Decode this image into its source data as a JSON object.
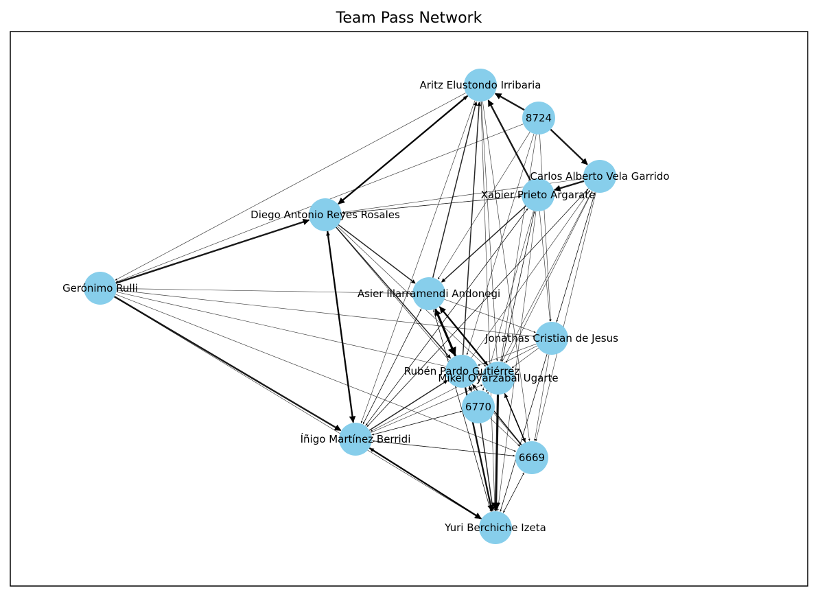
{
  "title": "Team Pass Network",
  "colors": {
    "node_fill": "#87CEEB",
    "edge": "#000000",
    "frame": "#000000",
    "background": "#ffffff"
  },
  "nodes": [
    {
      "id": "aritz",
      "label": "Aritz Elustondo Irribaria"
    },
    {
      "id": "n8724",
      "label": "8724"
    },
    {
      "id": "carlos",
      "label": "Carlos Alberto Vela Garrido"
    },
    {
      "id": "xabier",
      "label": "Xabier Prieto Argarate"
    },
    {
      "id": "diego",
      "label": "Diego Antonio Reyes Rosales"
    },
    {
      "id": "geronimo",
      "label": "Gerónimo Rulli"
    },
    {
      "id": "asier",
      "label": "Asier Illarramendi Andonegi"
    },
    {
      "id": "jonathas",
      "label": "Jonathas Cristian de Jesus"
    },
    {
      "id": "ruben",
      "label": "Rubén Pardo Gutiérrez"
    },
    {
      "id": "mikel",
      "label": "Mikel Oyarzabal Ugarte"
    },
    {
      "id": "n6770",
      "label": "6770"
    },
    {
      "id": "inigo",
      "label": "Íñigo Martínez Berridi"
    },
    {
      "id": "n6669",
      "label": "6669"
    },
    {
      "id": "yuri",
      "label": "Yuri Berchiche Izeta"
    }
  ],
  "edges": [
    {
      "source": "n8724",
      "target": "aritz",
      "weight": 3
    },
    {
      "source": "n8724",
      "target": "carlos",
      "weight": 3
    },
    {
      "source": "xabier",
      "target": "aritz",
      "weight": 3
    },
    {
      "source": "carlos",
      "target": "xabier",
      "weight": 3
    },
    {
      "source": "aritz",
      "target": "diego",
      "weight": 3
    },
    {
      "source": "diego",
      "target": "aritz",
      "weight": 2
    },
    {
      "source": "geronimo",
      "target": "diego",
      "weight": 3
    },
    {
      "source": "diego",
      "target": "inigo",
      "weight": 3
    },
    {
      "source": "inigo",
      "target": "diego",
      "weight": 2
    },
    {
      "source": "geronimo",
      "target": "inigo",
      "weight": 3
    },
    {
      "source": "inigo",
      "target": "yuri",
      "weight": 3
    },
    {
      "source": "yuri",
      "target": "inigo",
      "weight": 2
    },
    {
      "source": "asier",
      "target": "ruben",
      "weight": 4
    },
    {
      "source": "ruben",
      "target": "asier",
      "weight": 3
    },
    {
      "source": "mikel",
      "target": "asier",
      "weight": 3
    },
    {
      "source": "mikel",
      "target": "yuri",
      "weight": 4
    },
    {
      "source": "ruben",
      "target": "yuri",
      "weight": 3
    },
    {
      "source": "n6770",
      "target": "yuri",
      "weight": 2
    },
    {
      "source": "xabier",
      "target": "asier",
      "weight": 2
    },
    {
      "source": "diego",
      "target": "asier",
      "weight": 2
    },
    {
      "source": "diego",
      "target": "ruben",
      "weight": 2
    },
    {
      "source": "asier",
      "target": "aritz",
      "weight": 2
    },
    {
      "source": "ruben",
      "target": "aritz",
      "weight": 2
    },
    {
      "source": "inigo",
      "target": "ruben",
      "weight": 2
    },
    {
      "source": "inigo",
      "target": "mikel",
      "weight": 1
    },
    {
      "source": "n6669",
      "target": "ruben",
      "weight": 2
    },
    {
      "source": "n6669",
      "target": "mikel",
      "weight": 2
    },
    {
      "source": "yuri",
      "target": "n6669",
      "weight": 1
    },
    {
      "source": "carlos",
      "target": "jonathas",
      "weight": 1
    },
    {
      "source": "xabier",
      "target": "jonathas",
      "weight": 1
    },
    {
      "source": "carlos",
      "target": "n6669",
      "weight": 1
    },
    {
      "source": "jonathas",
      "target": "n6669",
      "weight": 1
    },
    {
      "source": "jonathas",
      "target": "ruben",
      "weight": 1
    },
    {
      "source": "jonathas",
      "target": "inigo",
      "weight": 1
    },
    {
      "source": "jonathas",
      "target": "yuri",
      "weight": 1
    },
    {
      "source": "carlos",
      "target": "inigo",
      "weight": 1
    },
    {
      "source": "carlos",
      "target": "mikel",
      "weight": 1
    },
    {
      "source": "carlos",
      "target": "n6770",
      "weight": 1
    },
    {
      "source": "carlos",
      "target": "diego",
      "weight": 1
    },
    {
      "source": "xabier",
      "target": "inigo",
      "weight": 1
    },
    {
      "source": "xabier",
      "target": "yuri",
      "weight": 1
    },
    {
      "source": "xabier",
      "target": "n6770",
      "weight": 1
    },
    {
      "source": "xabier",
      "target": "mikel",
      "weight": 1
    },
    {
      "source": "xabier",
      "target": "diego",
      "weight": 1
    },
    {
      "source": "n8724",
      "target": "asier",
      "weight": 1
    },
    {
      "source": "n8724",
      "target": "geronimo",
      "weight": 1
    },
    {
      "source": "n8724",
      "target": "mikel",
      "weight": 1
    },
    {
      "source": "n8724",
      "target": "ruben",
      "weight": 1
    },
    {
      "source": "n8724",
      "target": "jonathas",
      "weight": 1
    },
    {
      "source": "aritz",
      "target": "geronimo",
      "weight": 1
    },
    {
      "source": "aritz",
      "target": "yuri",
      "weight": 1
    },
    {
      "source": "aritz",
      "target": "mikel",
      "weight": 1
    },
    {
      "source": "aritz",
      "target": "n6669",
      "weight": 1
    },
    {
      "source": "aritz",
      "target": "inigo",
      "weight": 1
    },
    {
      "source": "geronimo",
      "target": "asier",
      "weight": 1
    },
    {
      "source": "geronimo",
      "target": "n6669",
      "weight": 1
    },
    {
      "source": "geronimo",
      "target": "jonathas",
      "weight": 1
    },
    {
      "source": "geronimo",
      "target": "yuri",
      "weight": 1
    },
    {
      "source": "geronimo",
      "target": "mikel",
      "weight": 1
    },
    {
      "source": "diego",
      "target": "xabier",
      "weight": 1
    },
    {
      "source": "diego",
      "target": "mikel",
      "weight": 1
    },
    {
      "source": "diego",
      "target": "n6669",
      "weight": 1
    },
    {
      "source": "asier",
      "target": "mikel",
      "weight": 2
    },
    {
      "source": "asier",
      "target": "n6770",
      "weight": 2
    },
    {
      "source": "asier",
      "target": "yuri",
      "weight": 1
    },
    {
      "source": "asier",
      "target": "inigo",
      "weight": 1
    },
    {
      "source": "asier",
      "target": "jonathas",
      "weight": 1
    },
    {
      "source": "ruben",
      "target": "mikel",
      "weight": 1
    },
    {
      "source": "mikel",
      "target": "ruben",
      "weight": 1
    },
    {
      "source": "ruben",
      "target": "n6669",
      "weight": 1
    },
    {
      "source": "mikel",
      "target": "n6669",
      "weight": 2
    },
    {
      "source": "n6770",
      "target": "n6669",
      "weight": 1
    },
    {
      "source": "n6770",
      "target": "ruben",
      "weight": 1
    },
    {
      "source": "n6770",
      "target": "mikel",
      "weight": 1
    },
    {
      "source": "n6770",
      "target": "inigo",
      "weight": 1
    },
    {
      "source": "inigo",
      "target": "n6770",
      "weight": 1
    },
    {
      "source": "inigo",
      "target": "n6669",
      "weight": 1
    },
    {
      "source": "yuri",
      "target": "ruben",
      "weight": 1
    },
    {
      "source": "yuri",
      "target": "asier",
      "weight": 1
    },
    {
      "source": "yuri",
      "target": "mikel",
      "weight": 1
    },
    {
      "source": "n6669",
      "target": "inigo",
      "weight": 1
    },
    {
      "source": "n6669",
      "target": "yuri",
      "weight": 1
    },
    {
      "source": "jonathas",
      "target": "mikel",
      "weight": 1
    },
    {
      "source": "inigo",
      "target": "xabier",
      "weight": 1
    },
    {
      "source": "inigo",
      "target": "asier",
      "weight": 1
    },
    {
      "source": "inigo",
      "target": "carlos",
      "weight": 1
    },
    {
      "source": "ruben",
      "target": "carlos",
      "weight": 1
    },
    {
      "source": "mikel",
      "target": "xabier",
      "weight": 1
    },
    {
      "source": "yuri",
      "target": "carlos",
      "weight": 1
    }
  ]
}
